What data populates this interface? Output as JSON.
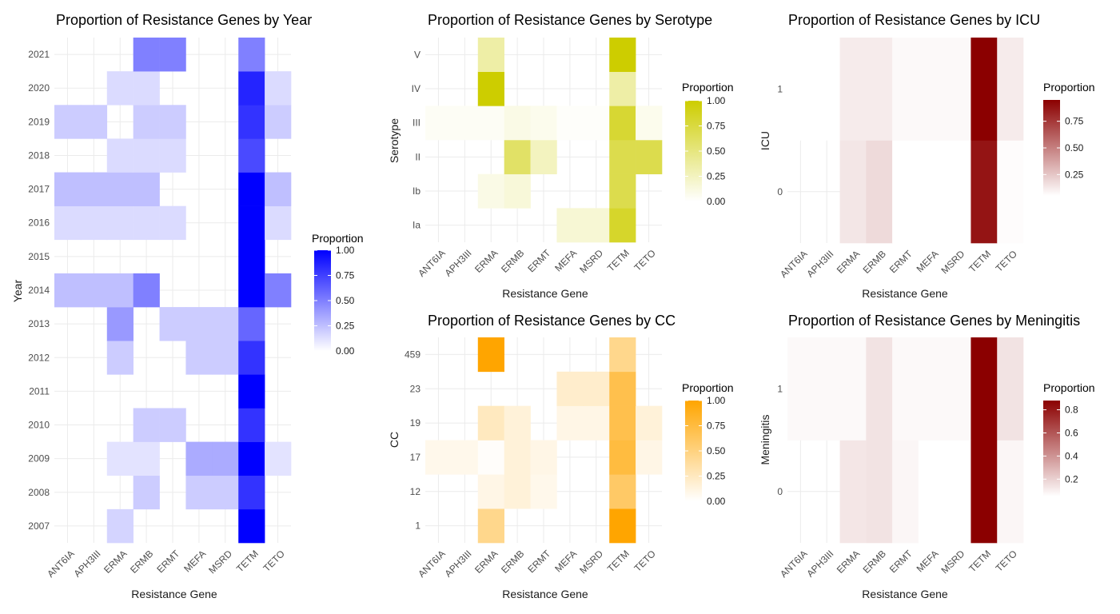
{
  "chart_data": [
    {
      "type": "heatmap",
      "title": "Proportion of Resistance Genes by Year",
      "xlabel": "Resistance Gene",
      "ylabel": "Year",
      "legend_title": "Proportion",
      "legend_position": "right",
      "color_low": "#ffffff",
      "color_high": "#0000ff",
      "scale_limits": [
        0,
        1
      ],
      "legend_breaks": [
        "0.00",
        "0.25",
        "0.50",
        "0.75",
        "1.00"
      ],
      "grid": true,
      "x": [
        "ANT6IA",
        "APH3III",
        "ERMA",
        "ERMB",
        "ERMT",
        "MEFA",
        "MSRD",
        "TETM",
        "TETO"
      ],
      "y": [
        "2007",
        "2008",
        "2009",
        "2010",
        "2011",
        "2012",
        "2013",
        "2014",
        "2015",
        "2016",
        "2017",
        "2018",
        "2019",
        "2020",
        "2021"
      ],
      "values": [
        [
          null,
          null,
          0.17,
          null,
          null,
          null,
          null,
          1.0,
          null
        ],
        [
          null,
          null,
          null,
          0.2,
          null,
          0.2,
          0.2,
          0.8,
          null
        ],
        [
          null,
          null,
          0.11,
          0.11,
          null,
          0.33,
          0.33,
          1.0,
          0.11
        ],
        [
          null,
          null,
          null,
          0.2,
          0.2,
          null,
          null,
          0.8,
          null
        ],
        [
          null,
          null,
          null,
          null,
          null,
          null,
          null,
          1.0,
          null
        ],
        [
          null,
          null,
          0.2,
          null,
          null,
          0.2,
          0.2,
          0.8,
          null
        ],
        [
          null,
          null,
          0.4,
          null,
          0.2,
          0.2,
          0.2,
          0.6,
          null
        ],
        [
          0.25,
          0.25,
          0.25,
          0.5,
          null,
          null,
          null,
          1.0,
          0.5
        ],
        [
          null,
          null,
          null,
          null,
          null,
          null,
          null,
          1.0,
          null
        ],
        [
          0.14,
          0.14,
          0.14,
          0.14,
          0.14,
          null,
          null,
          1.0,
          0.14
        ],
        [
          0.25,
          0.25,
          0.25,
          0.25,
          null,
          null,
          null,
          1.0,
          0.25
        ],
        [
          null,
          null,
          0.14,
          0.14,
          0.14,
          null,
          null,
          0.71,
          null
        ],
        [
          0.2,
          0.2,
          null,
          0.2,
          0.2,
          null,
          null,
          0.8,
          0.2
        ],
        [
          null,
          null,
          0.14,
          0.14,
          null,
          null,
          null,
          0.86,
          0.14
        ],
        [
          null,
          null,
          null,
          0.5,
          0.5,
          null,
          null,
          0.5,
          null
        ]
      ]
    },
    {
      "type": "heatmap",
      "title": "Proportion of Resistance Genes by Serotype",
      "xlabel": "Resistance Gene",
      "ylabel": "Serotype",
      "legend_title": "Proportion",
      "legend_position": "right",
      "color_low": "#ffffff",
      "color_high": "#cdcd00",
      "scale_limits": [
        0,
        1
      ],
      "legend_breaks": [
        "0.00",
        "0.25",
        "0.50",
        "0.75",
        "1.00"
      ],
      "grid": true,
      "x": [
        "ANT6IA",
        "APH3III",
        "ERMA",
        "ERMB",
        "ERMT",
        "MEFA",
        "MSRD",
        "TETM",
        "TETO"
      ],
      "y": [
        "Ia",
        "Ib",
        "II",
        "III",
        "IV",
        "V"
      ],
      "values": [
        [
          null,
          null,
          null,
          null,
          null,
          0.17,
          0.17,
          0.83,
          null
        ],
        [
          null,
          null,
          0.1,
          0.15,
          null,
          null,
          null,
          0.7,
          null
        ],
        [
          null,
          null,
          null,
          0.6,
          0.25,
          null,
          null,
          0.7,
          0.7
        ],
        [
          0.04,
          0.04,
          0.04,
          0.1,
          0.07,
          0.02,
          0.02,
          0.8,
          0.07
        ],
        [
          null,
          null,
          1.0,
          null,
          null,
          null,
          null,
          0.35,
          null
        ],
        [
          null,
          null,
          0.35,
          null,
          null,
          null,
          null,
          1.0,
          null
        ]
      ]
    },
    {
      "type": "heatmap",
      "title": "Proportion of Resistance Genes by ICU",
      "xlabel": "Resistance Gene",
      "ylabel": "ICU",
      "legend_title": "Proportion",
      "legend_position": "right",
      "color_low": "#ffffff",
      "color_high": "#8b0000",
      "scale_limits": [
        0.05,
        0.95
      ],
      "legend_breaks": [
        "0.25",
        "0.50",
        "0.75"
      ],
      "grid": true,
      "x": [
        "ANT6IA",
        "APH3III",
        "ERMA",
        "ERMB",
        "ERMT",
        "MEFA",
        "MSRD",
        "TETM",
        "TETO"
      ],
      "y": [
        "0",
        "1"
      ],
      "values": [
        [
          null,
          null,
          0.14,
          0.18,
          0.05,
          0.04,
          0.04,
          0.88,
          0.06
        ],
        [
          0.05,
          0.05,
          0.12,
          0.12,
          0.07,
          0.07,
          0.07,
          0.95,
          0.12
        ]
      ]
    },
    {
      "type": "heatmap",
      "title": "Proportion of Resistance Genes by CC",
      "xlabel": "Resistance Gene",
      "ylabel": "CC",
      "legend_title": "Proportion",
      "legend_position": "right",
      "color_low": "#ffffff",
      "color_high": "#ffa500",
      "scale_limits": [
        0,
        1
      ],
      "legend_breaks": [
        "0.00",
        "0.25",
        "0.50",
        "0.75",
        "1.00"
      ],
      "grid": true,
      "x": [
        "ANT6IA",
        "APH3III",
        "ERMA",
        "ERMB",
        "ERMT",
        "MEFA",
        "MSRD",
        "TETM",
        "TETO"
      ],
      "y": [
        "1",
        "12",
        "17",
        "19",
        "23",
        "459"
      ],
      "values": [
        [
          null,
          null,
          0.45,
          null,
          null,
          null,
          null,
          1.0,
          null
        ],
        [
          null,
          null,
          0.1,
          0.15,
          0.08,
          null,
          null,
          0.6,
          null
        ],
        [
          0.08,
          0.08,
          0.02,
          0.15,
          0.1,
          null,
          null,
          0.75,
          0.1
        ],
        [
          null,
          null,
          0.25,
          0.15,
          null,
          0.1,
          0.1,
          0.7,
          0.15
        ],
        [
          null,
          null,
          null,
          null,
          null,
          0.2,
          0.2,
          0.7,
          null
        ],
        [
          null,
          null,
          1.0,
          null,
          null,
          null,
          null,
          0.45,
          null
        ]
      ]
    },
    {
      "type": "heatmap",
      "title": "Proportion of Resistance Genes by Meningitis",
      "xlabel": "Resistance Gene",
      "ylabel": "Meningitis",
      "legend_title": "Proportion",
      "legend_position": "right",
      "color_low": "#ffffff",
      "color_high": "#8b0000",
      "scale_limits": [
        0.05,
        0.88
      ],
      "legend_breaks": [
        "0.2",
        "0.4",
        "0.6",
        "0.8"
      ],
      "grid": true,
      "x": [
        "ANT6IA",
        "APH3III",
        "ERMA",
        "ERMB",
        "ERMT",
        "MEFA",
        "MSRD",
        "TETM",
        "TETO"
      ],
      "y": [
        "0",
        "1"
      ],
      "values": [
        [
          null,
          null,
          0.13,
          0.14,
          0.08,
          0.05,
          0.05,
          0.88,
          0.08
        ],
        [
          0.07,
          0.07,
          0.07,
          0.14,
          0.07,
          0.07,
          0.07,
          0.88,
          0.14
        ]
      ]
    }
  ]
}
